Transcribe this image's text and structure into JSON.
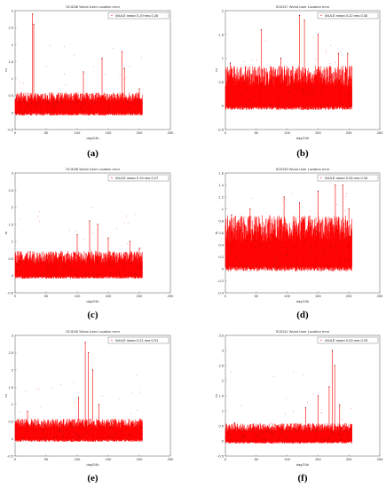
{
  "chart_data": [
    {
      "id": "a",
      "type": "line",
      "title": "SCID36 Worst User Location error",
      "caption": "(a)",
      "xlabel": "day/24h",
      "ylabel": "m",
      "xlim": [
        0,
        250
      ],
      "ylim": [
        -0.5,
        3
      ],
      "xticks": [
        "0",
        "50",
        "100",
        "150",
        "200",
        "250"
      ],
      "yticks": [
        "-0.5",
        "0",
        "0.5",
        "1",
        "1.5",
        "2",
        "2.5",
        "3"
      ],
      "legend": "WULE mean 0.19 rms 0.26",
      "legend_position": "top-right",
      "color": "#ff0000",
      "data_x_range": [
        0,
        205
      ],
      "baseline": 0.2,
      "band": [
        -0.05,
        0.5
      ],
      "spikes": [
        {
          "x": 28,
          "y": 2.9
        },
        {
          "x": 30,
          "y": 2.6
        },
        {
          "x": 110,
          "y": 1.2
        },
        {
          "x": 140,
          "y": 1.6
        },
        {
          "x": 172,
          "y": 1.8
        },
        {
          "x": 176,
          "y": 1.3
        },
        {
          "x": 200,
          "y": 0.7
        }
      ]
    },
    {
      "id": "b",
      "type": "line",
      "title": "SCID37 Worst User Location error",
      "caption": "(b)",
      "xlabel": "day/24h",
      "ylabel": "m",
      "xlim": [
        0,
        250
      ],
      "ylim": [
        -0.5,
        2
      ],
      "xticks": [
        "0",
        "50",
        "100",
        "150",
        "200",
        "250"
      ],
      "yticks": [
        "-0.5",
        "0",
        "0.5",
        "1",
        "1.5",
        "2"
      ],
      "legend": "WULE mean 0.22 rms 0.30",
      "legend_position": "top-right",
      "color": "#ff0000",
      "data_x_range": [
        0,
        205
      ],
      "baseline": 0.22,
      "band": [
        -0.05,
        0.7
      ],
      "spikes": [
        {
          "x": 8,
          "y": 0.9
        },
        {
          "x": 58,
          "y": 1.6
        },
        {
          "x": 90,
          "y": 1.0
        },
        {
          "x": 120,
          "y": 1.9
        },
        {
          "x": 128,
          "y": 1.8
        },
        {
          "x": 150,
          "y": 1.5
        },
        {
          "x": 183,
          "y": 1.1
        },
        {
          "x": 198,
          "y": 1.1
        }
      ]
    },
    {
      "id": "c",
      "type": "line",
      "title": "SCID38 Worst User Location error",
      "caption": "(c)",
      "xlabel": "day/24h",
      "ylabel": "m",
      "xlim": [
        0,
        250
      ],
      "ylim": [
        -0.5,
        3
      ],
      "xticks": [
        "0",
        "50",
        "100",
        "150",
        "200",
        "250"
      ],
      "yticks": [
        "-0.5",
        "0",
        "0.5",
        "1",
        "1.5",
        "2",
        "2.5",
        "3"
      ],
      "legend": "WULE mean 0.19 rms 0.27",
      "legend_position": "top-right",
      "color": "#ff0000",
      "data_x_range": [
        0,
        205
      ],
      "baseline": 0.2,
      "band": [
        -0.05,
        0.6
      ],
      "spikes": [
        {
          "x": 100,
          "y": 1.2
        },
        {
          "x": 120,
          "y": 1.6
        },
        {
          "x": 133,
          "y": 1.5
        },
        {
          "x": 150,
          "y": 1.1
        },
        {
          "x": 185,
          "y": 1.0
        },
        {
          "x": 200,
          "y": 0.8
        }
      ]
    },
    {
      "id": "d",
      "type": "line",
      "title": "SCID39 Worst User Location error",
      "caption": "(d)",
      "xlabel": "day/24h",
      "ylabel": "m",
      "xlim": [
        0,
        250
      ],
      "ylim": [
        -0.4,
        1.6
      ],
      "xticks": [
        "0",
        "50",
        "100",
        "150",
        "200",
        "250"
      ],
      "yticks": [
        "-0.4",
        "-0.2",
        "0",
        "0.2",
        "0.4",
        "0.6",
        "0.8",
        "1",
        "1.2",
        "1.4",
        "1.6"
      ],
      "legend": "WULE mean 0.26 rms 0.34",
      "legend_position": "top-right",
      "color": "#ff0000",
      "data_x_range": [
        0,
        205
      ],
      "baseline": 0.26,
      "band": [
        0.0,
        0.75
      ],
      "spikes": [
        {
          "x": 10,
          "y": 0.9
        },
        {
          "x": 40,
          "y": 1.0
        },
        {
          "x": 95,
          "y": 1.2
        },
        {
          "x": 120,
          "y": 1.1
        },
        {
          "x": 150,
          "y": 1.3
        },
        {
          "x": 178,
          "y": 1.4
        },
        {
          "x": 190,
          "y": 1.4
        },
        {
          "x": 200,
          "y": 1.0
        }
      ]
    },
    {
      "id": "e",
      "type": "line",
      "title": "SCID40 Worst User Location error",
      "caption": "(e)",
      "xlabel": "day/24h",
      "ylabel": "m",
      "xlim": [
        0,
        250
      ],
      "ylim": [
        -0.5,
        3
      ],
      "xticks": [
        "0",
        "50",
        "100",
        "150",
        "200",
        "250"
      ],
      "yticks": [
        "-0.5",
        "0",
        "0.5",
        "1",
        "1.5",
        "2",
        "2.5",
        "3"
      ],
      "legend": "WULE mean 0.21 rms 0.31",
      "legend_position": "top-right",
      "color": "#ff0000",
      "data_x_range": [
        0,
        205
      ],
      "baseline": 0.2,
      "band": [
        -0.05,
        0.5
      ],
      "spikes": [
        {
          "x": 20,
          "y": 0.8
        },
        {
          "x": 102,
          "y": 1.2
        },
        {
          "x": 113,
          "y": 2.8
        },
        {
          "x": 118,
          "y": 2.5
        },
        {
          "x": 125,
          "y": 2.0
        },
        {
          "x": 135,
          "y": 1.0
        }
      ]
    },
    {
      "id": "f",
      "type": "line",
      "title": "SCID41 Worst User Location error",
      "caption": "(f)",
      "xlabel": "day/24h",
      "ylabel": "m",
      "xlim": [
        0,
        250
      ],
      "ylim": [
        -0.5,
        3.5
      ],
      "xticks": [
        "0",
        "50",
        "100",
        "150",
        "200",
        "250"
      ],
      "yticks": [
        "-0.5",
        "0",
        "0.5",
        "1",
        "1.5",
        "2",
        "2.5",
        "3",
        "3.5"
      ],
      "legend": "WULE mean 0.20 rms 0.29",
      "legend_position": "top-right",
      "color": "#ff0000",
      "data_x_range": [
        0,
        205
      ],
      "baseline": 0.2,
      "band": [
        -0.05,
        0.5
      ],
      "spikes": [
        {
          "x": 15,
          "y": 0.6
        },
        {
          "x": 130,
          "y": 1.1
        },
        {
          "x": 150,
          "y": 1.5
        },
        {
          "x": 168,
          "y": 1.8
        },
        {
          "x": 173,
          "y": 3.0
        },
        {
          "x": 177,
          "y": 2.5
        },
        {
          "x": 185,
          "y": 1.2
        }
      ]
    }
  ]
}
